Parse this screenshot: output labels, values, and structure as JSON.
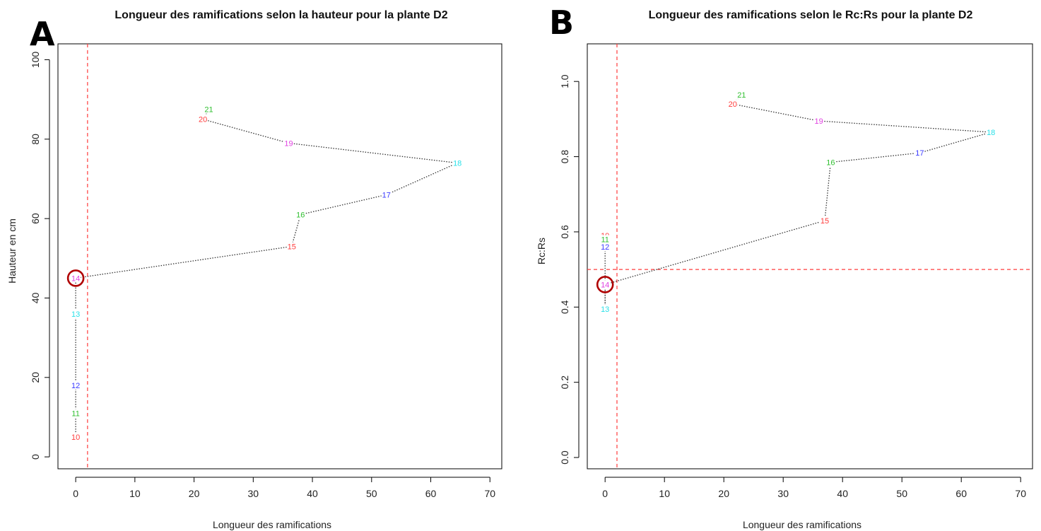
{
  "chart_data": [
    {
      "type": "line",
      "panel_letter": "A",
      "title": "Longueur des ramifications selon la hauteur pour la plante D2",
      "xlabel": "Longueur des ramifications",
      "ylabel": "Hauteur en cm",
      "xlim": [
        -3,
        72
      ],
      "ylim": [
        -3,
        104
      ],
      "xticks": [
        0,
        10,
        20,
        30,
        40,
        50,
        60,
        70
      ],
      "yticks": [
        0,
        20,
        40,
        60,
        80,
        100
      ],
      "line_style": "dotted",
      "line_color": "#333333",
      "points": [
        {
          "label": "10",
          "x": 0,
          "y": 5,
          "color": "#ff3b3b"
        },
        {
          "label": "11",
          "x": 0,
          "y": 11,
          "color": "#2fbf2f"
        },
        {
          "label": "12",
          "x": 0,
          "y": 18,
          "color": "#3a3aff"
        },
        {
          "label": "13",
          "x": 0,
          "y": 36,
          "color": "#28e0e8"
        },
        {
          "label": "14",
          "x": 0,
          "y": 45,
          "color": "#e040e0"
        },
        {
          "label": "15",
          "x": 36.5,
          "y": 53,
          "color": "#ff3b3b"
        },
        {
          "label": "16",
          "x": 38,
          "y": 61,
          "color": "#2fbf2f"
        },
        {
          "label": "17",
          "x": 52.5,
          "y": 66,
          "color": "#3a3aff"
        },
        {
          "label": "18",
          "x": 64.5,
          "y": 74,
          "color": "#28e0e8"
        },
        {
          "label": "19",
          "x": 36,
          "y": 79,
          "color": "#e040e0"
        },
        {
          "label": "20",
          "x": 21.5,
          "y": 85,
          "color": "#ff3b3b"
        },
        {
          "label": "21",
          "x": 22.5,
          "y": 87.5,
          "color": "#2fbf2f"
        }
      ],
      "vline": 2,
      "hline": null,
      "reference_line_color": "#ff3b3b",
      "highlight": {
        "point_label": "14",
        "color": "#b00000"
      }
    },
    {
      "type": "line",
      "panel_letter": "B",
      "title": "Longueur des ramifications selon le Rc:Rs pour la plante D2",
      "xlabel": "Longueur des ramifications",
      "ylabel": "Rc:Rs",
      "xlim": [
        -3,
        72
      ],
      "ylim": [
        -0.03,
        1.1
      ],
      "xticks": [
        0,
        10,
        20,
        30,
        40,
        50,
        60,
        70
      ],
      "yticks": [
        "0.0",
        "0.2",
        "0.4",
        "0.6",
        "0.8",
        "1.0"
      ],
      "line_style": "dotted",
      "line_color": "#333333",
      "points": [
        {
          "label": "10",
          "x": 0,
          "y": 0.59,
          "color": "#ff3b3b"
        },
        {
          "label": "11",
          "x": 0,
          "y": 0.58,
          "color": "#2fbf2f"
        },
        {
          "label": "12",
          "x": 0,
          "y": 0.56,
          "color": "#3a3aff"
        },
        {
          "label": "14",
          "x": 0,
          "y": 0.46,
          "color": "#e040e0"
        },
        {
          "label": "13",
          "x": 0,
          "y": 0.395,
          "color": "#28e0e8"
        },
        {
          "label": "15",
          "x": 37,
          "y": 0.63,
          "color": "#ff3b3b"
        },
        {
          "label": "16",
          "x": 38,
          "y": 0.785,
          "color": "#2fbf2f"
        },
        {
          "label": "17",
          "x": 53,
          "y": 0.81,
          "color": "#3a3aff"
        },
        {
          "label": "18",
          "x": 65,
          "y": 0.865,
          "color": "#28e0e8"
        },
        {
          "label": "19",
          "x": 36,
          "y": 0.895,
          "color": "#e040e0"
        },
        {
          "label": "20",
          "x": 21.5,
          "y": 0.94,
          "color": "#ff3b3b"
        },
        {
          "label": "21",
          "x": 23,
          "y": 0.965,
          "color": "#2fbf2f"
        }
      ],
      "vline": 2,
      "hline": 0.5,
      "reference_line_color": "#ff3b3b",
      "highlight": {
        "point_label": "14",
        "color": "#b00000"
      }
    }
  ]
}
